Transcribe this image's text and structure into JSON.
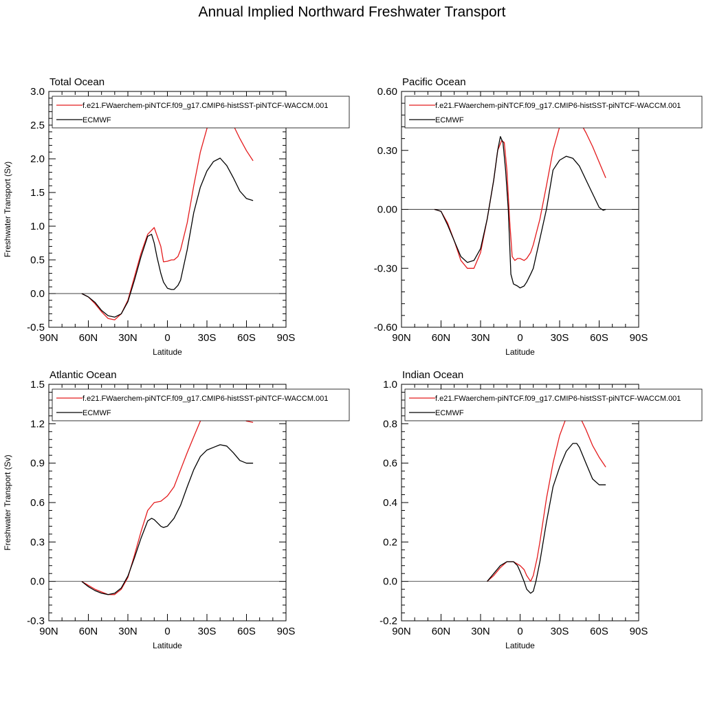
{
  "title": "Annual Implied Northward Freshwater Transport",
  "colors": {
    "model": "#e41a1c",
    "obs": "#000000",
    "zero_line": "#000000"
  },
  "chart_data": [
    {
      "type": "line",
      "panel_title": "Total Ocean",
      "xlabel": "Latitude",
      "ylabel": "Freshwater Transport (Sv)",
      "xlim": [
        90,
        -90
      ],
      "ylim": [
        -0.5,
        3.0
      ],
      "xticks": [
        90,
        60,
        30,
        0,
        -30,
        -60,
        -90
      ],
      "xtick_labels": [
        "90N",
        "60N",
        "30N",
        "0",
        "30S",
        "60S",
        "90S"
      ],
      "yticks": [
        -0.5,
        0.0,
        0.5,
        1.0,
        1.5,
        2.0,
        2.5,
        3.0
      ],
      "ytick_labels": [
        "-0.5",
        "0.0",
        "0.5",
        "1.0",
        "1.5",
        "2.0",
        "2.5",
        "3.0"
      ],
      "legend_location": "top",
      "series": [
        {
          "name": "f.e21.FWaerchem-piNTCF.f09_g17.CMIP6-histSST-piNTCF-WACCM.001",
          "color": "#e41a1c",
          "x": [
            65,
            60,
            55,
            50,
            45,
            40,
            35,
            30,
            25,
            20,
            15,
            10,
            5,
            3,
            0,
            -3,
            -5,
            -8,
            -10,
            -15,
            -20,
            -25,
            -30,
            -35,
            -40,
            -45,
            -50,
            -55,
            -60,
            -65
          ],
          "y": [
            0.0,
            -0.05,
            -0.15,
            -0.27,
            -0.37,
            -0.39,
            -0.3,
            -0.1,
            0.25,
            0.6,
            0.88,
            0.98,
            0.7,
            0.47,
            0.48,
            0.5,
            0.5,
            0.55,
            0.65,
            1.05,
            1.6,
            2.1,
            2.45,
            2.68,
            2.76,
            2.68,
            2.5,
            2.3,
            2.12,
            1.97
          ]
        },
        {
          "name": "ECMWF",
          "color": "#000000",
          "x": [
            65,
            60,
            55,
            50,
            45,
            40,
            35,
            30,
            25,
            20,
            15,
            12,
            10,
            8,
            5,
            3,
            0,
            -3,
            -5,
            -8,
            -10,
            -15,
            -20,
            -25,
            -30,
            -35,
            -40,
            -45,
            -50,
            -55,
            -60,
            -65
          ],
          "y": [
            0.0,
            -0.05,
            -0.13,
            -0.25,
            -0.33,
            -0.35,
            -0.3,
            -0.12,
            0.2,
            0.55,
            0.85,
            0.88,
            0.75,
            0.55,
            0.3,
            0.17,
            0.08,
            0.06,
            0.06,
            0.12,
            0.2,
            0.65,
            1.2,
            1.58,
            1.82,
            1.96,
            2.01,
            1.9,
            1.72,
            1.52,
            1.41,
            1.38
          ]
        }
      ]
    },
    {
      "type": "line",
      "panel_title": "Pacific Ocean",
      "xlabel": "Latitude",
      "ylabel": "",
      "xlim": [
        90,
        -90
      ],
      "ylim": [
        -0.6,
        0.6
      ],
      "xticks": [
        90,
        60,
        30,
        0,
        -30,
        -60,
        -90
      ],
      "xtick_labels": [
        "90N",
        "60N",
        "30N",
        "0",
        "30S",
        "60S",
        "90S"
      ],
      "yticks": [
        -0.6,
        -0.3,
        0.0,
        0.3,
        0.6
      ],
      "ytick_labels": [
        "-0.60",
        "-0.30",
        "0.00",
        "0.30",
        "0.60"
      ],
      "legend_location": "top",
      "series": [
        {
          "name": "f.e21.FWaerchem-piNTCF.f09_g17.CMIP6-histSST-piNTCF-WACCM.001",
          "color": "#e41a1c",
          "x": [
            65,
            60,
            55,
            50,
            45,
            40,
            35,
            30,
            25,
            20,
            17,
            14,
            12,
            10,
            8,
            6,
            4,
            2,
            0,
            -3,
            -5,
            -8,
            -10,
            -15,
            -20,
            -25,
            -30,
            -35,
            -40,
            -45,
            -50,
            -55,
            -60,
            -65
          ],
          "y": [
            0.0,
            -0.01,
            -0.07,
            -0.16,
            -0.26,
            -0.3,
            -0.3,
            -0.22,
            -0.05,
            0.15,
            0.3,
            0.35,
            0.34,
            0.2,
            -0.05,
            -0.24,
            -0.26,
            -0.25,
            -0.25,
            -0.26,
            -0.25,
            -0.22,
            -0.18,
            -0.05,
            0.12,
            0.3,
            0.42,
            0.47,
            0.48,
            0.45,
            0.39,
            0.32,
            0.24,
            0.16
          ]
        },
        {
          "name": "ECMWF",
          "color": "#000000",
          "x": [
            65,
            60,
            55,
            50,
            45,
            40,
            35,
            30,
            25,
            20,
            17,
            15,
            13,
            11,
            9,
            7,
            5,
            2,
            0,
            -3,
            -5,
            -8,
            -10,
            -15,
            -20,
            -25,
            -30,
            -35,
            -40,
            -45,
            -50,
            -55,
            -60,
            -63,
            -65
          ],
          "y": [
            0.0,
            -0.01,
            -0.08,
            -0.16,
            -0.24,
            -0.27,
            -0.26,
            -0.2,
            -0.05,
            0.15,
            0.3,
            0.37,
            0.34,
            0.2,
            0.0,
            -0.33,
            -0.38,
            -0.39,
            -0.4,
            -0.39,
            -0.37,
            -0.33,
            -0.3,
            -0.15,
            0.0,
            0.2,
            0.25,
            0.27,
            0.26,
            0.22,
            0.15,
            0.08,
            0.01,
            -0.005,
            0.0
          ]
        }
      ]
    },
    {
      "type": "line",
      "panel_title": "Atlantic Ocean",
      "xlabel": "Latitude",
      "ylabel": "Freshwater Transport (Sv)",
      "xlim": [
        90,
        -90
      ],
      "ylim": [
        -0.3,
        1.5
      ],
      "xticks": [
        90,
        60,
        30,
        0,
        -30,
        -60,
        -90
      ],
      "xtick_labels": [
        "90N",
        "60N",
        "30N",
        "0",
        "30S",
        "60S",
        "90S"
      ],
      "yticks": [
        -0.3,
        0.0,
        0.3,
        0.6,
        0.9,
        1.2,
        1.5
      ],
      "ytick_labels": [
        "-0.3",
        "0.0",
        "0.3",
        "0.6",
        "0.9",
        "1.2",
        "1.5"
      ],
      "legend_location": "top",
      "series": [
        {
          "name": "f.e21.FWaerchem-piNTCF.f09_g17.CMIP6-histSST-piNTCF-WACCM.001",
          "color": "#e41a1c",
          "x": [
            65,
            60,
            55,
            50,
            45,
            40,
            35,
            30,
            25,
            20,
            15,
            10,
            5,
            0,
            -5,
            -10,
            -15,
            -20,
            -25,
            -30,
            -35,
            -40,
            -45,
            -50,
            -55,
            -60,
            -65
          ],
          "y": [
            0.0,
            -0.03,
            -0.06,
            -0.08,
            -0.1,
            -0.1,
            -0.06,
            0.03,
            0.2,
            0.38,
            0.54,
            0.6,
            0.61,
            0.65,
            0.72,
            0.85,
            0.98,
            1.1,
            1.22,
            1.32,
            1.4,
            1.42,
            1.38,
            1.32,
            1.26,
            1.22,
            1.21
          ]
        },
        {
          "name": "ECMWF",
          "color": "#000000",
          "x": [
            65,
            60,
            55,
            50,
            45,
            40,
            35,
            30,
            25,
            20,
            15,
            12,
            10,
            5,
            3,
            0,
            -5,
            -10,
            -15,
            -20,
            -25,
            -30,
            -35,
            -40,
            -45,
            -50,
            -55,
            -60,
            -65
          ],
          "y": [
            0.0,
            -0.04,
            -0.07,
            -0.09,
            -0.1,
            -0.09,
            -0.05,
            0.04,
            0.18,
            0.33,
            0.46,
            0.48,
            0.47,
            0.42,
            0.41,
            0.42,
            0.48,
            0.58,
            0.72,
            0.85,
            0.95,
            1.0,
            1.02,
            1.04,
            1.03,
            0.98,
            0.92,
            0.9,
            0.9
          ]
        }
      ]
    },
    {
      "type": "line",
      "panel_title": "Indian Ocean",
      "xlabel": "Latitude",
      "ylabel": "",
      "xlim": [
        90,
        -90
      ],
      "ylim": [
        -0.2,
        1.0
      ],
      "xticks": [
        90,
        60,
        30,
        0,
        -30,
        -60,
        -90
      ],
      "xtick_labels": [
        "90N",
        "60N",
        "30N",
        "0",
        "30S",
        "60S",
        "90S"
      ],
      "yticks": [
        -0.2,
        0.0,
        0.2,
        0.4,
        0.6,
        0.8,
        1.0
      ],
      "ytick_labels": [
        "-0.2",
        "0.0",
        "0.2",
        "0.4",
        "0.6",
        "0.8",
        "1.0"
      ],
      "legend_location": "top",
      "series": [
        {
          "name": "f.e21.FWaerchem-piNTCF.f09_g17.CMIP6-histSST-piNTCF-WACCM.001",
          "color": "#e41a1c",
          "x": [
            25,
            20,
            15,
            10,
            5,
            0,
            -3,
            -5,
            -8,
            -10,
            -13,
            -15,
            -20,
            -25,
            -30,
            -35,
            -40,
            -43,
            -45,
            -50,
            -55,
            -60,
            -65
          ],
          "y": [
            0.0,
            0.03,
            0.07,
            0.1,
            0.1,
            0.08,
            0.06,
            0.03,
            0.0,
            0.03,
            0.12,
            0.2,
            0.42,
            0.6,
            0.74,
            0.83,
            0.86,
            0.86,
            0.84,
            0.77,
            0.69,
            0.63,
            0.58
          ]
        },
        {
          "name": "ECMWF",
          "color": "#000000",
          "x": [
            25,
            20,
            15,
            10,
            5,
            2,
            0,
            -3,
            -5,
            -8,
            -10,
            -12,
            -15,
            -20,
            -25,
            -30,
            -35,
            -40,
            -43,
            -45,
            -50,
            -55,
            -60,
            -65
          ],
          "y": [
            0.0,
            0.04,
            0.08,
            0.1,
            0.1,
            0.08,
            0.05,
            0.0,
            -0.04,
            -0.06,
            -0.05,
            0.0,
            0.1,
            0.3,
            0.48,
            0.58,
            0.66,
            0.7,
            0.7,
            0.68,
            0.6,
            0.52,
            0.49,
            0.49
          ]
        }
      ]
    }
  ]
}
